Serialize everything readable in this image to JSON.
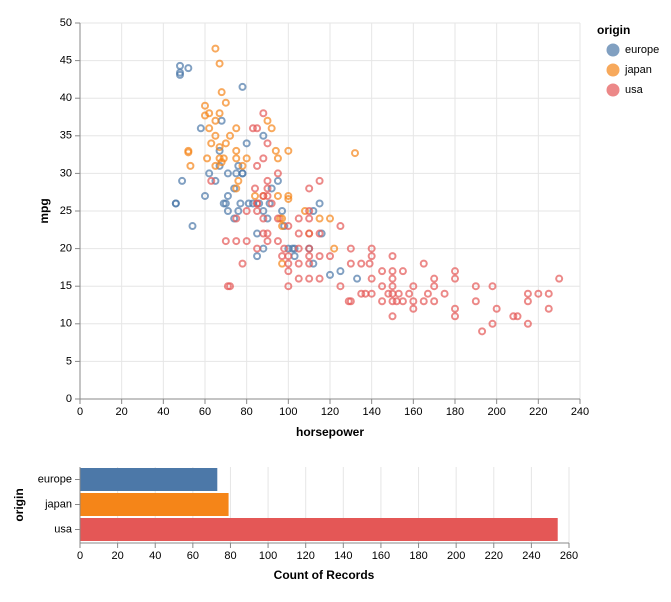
{
  "chart_data": [
    {
      "type": "scatter",
      "x_label": "horsepower",
      "y_label": "mpg",
      "legend_title": "origin",
      "xlim": [
        0,
        240
      ],
      "ylim": [
        0,
        50
      ],
      "xticks": [
        0,
        20,
        40,
        60,
        80,
        100,
        120,
        140,
        160,
        180,
        200,
        220,
        240
      ],
      "yticks": [
        0,
        5,
        10,
        15,
        20,
        25,
        30,
        35,
        40,
        45,
        50
      ],
      "grid": true,
      "series": [
        {
          "name": "europe",
          "color": "#4c78a8",
          "x": [
            46,
            46,
            48,
            48,
            52,
            48,
            49,
            54,
            58,
            60,
            62,
            67,
            67,
            69,
            70,
            71,
            71,
            74,
            75,
            76,
            76,
            77,
            78,
            78,
            80,
            81,
            83,
            85,
            86,
            88,
            90,
            91,
            92,
            95,
            97,
            98,
            100,
            102,
            103,
            110,
            112,
            115,
            116,
            120,
            125,
            133,
            103,
            85,
            112,
            71,
            88,
            74,
            88,
            65,
            68,
            78
          ],
          "values": [
            26,
            26,
            43.1,
            44.3,
            44,
            43.4,
            29,
            23,
            36,
            27,
            30,
            33,
            31,
            26,
            26,
            30,
            27,
            28,
            30,
            31,
            25,
            26,
            41.5,
            30,
            34,
            26,
            26,
            22,
            26,
            35,
            24,
            26,
            28,
            29,
            25,
            23,
            20,
            20,
            20,
            20,
            25,
            26,
            22,
            16.5,
            17,
            16,
            19,
            19,
            18,
            25,
            25,
            24,
            20,
            29,
            37,
            30
          ]
        },
        {
          "name": "japan",
          "color": "#f58518",
          "x": [
            52,
            52,
            53,
            60,
            61,
            62,
            65,
            67,
            65,
            68,
            67,
            65,
            67,
            68,
            69,
            70,
            72,
            75,
            75,
            75,
            76,
            78,
            80,
            84,
            88,
            90,
            92,
            94,
            95,
            95,
            96,
            97,
            97,
            100,
            100,
            108,
            110,
            115,
            120,
            122,
            132,
            60,
            62,
            63,
            67,
            70,
            65,
            75,
            97,
            100
          ],
          "values": [
            32.8,
            33,
            31,
            39,
            32,
            38,
            46.6,
            44.6,
            37,
            40.8,
            32,
            31,
            33.5,
            31.5,
            32,
            39.4,
            35,
            36,
            32,
            33,
            29,
            31,
            32,
            27,
            27,
            37,
            36,
            33,
            27,
            32,
            24,
            24,
            23,
            33,
            26.6,
            25,
            22,
            24,
            24,
            20,
            32.7,
            37.7,
            36,
            34,
            38,
            34,
            35,
            28,
            18,
            27
          ]
        },
        {
          "name": "usa",
          "color": "#e45756",
          "x": [
            63,
            71,
            72,
            75,
            78,
            80,
            85,
            85,
            88,
            88,
            90,
            90,
            90,
            95,
            97,
            100,
            100,
            100,
            105,
            105,
            105,
            110,
            110,
            110,
            110,
            115,
            115,
            120,
            125,
            129,
            130,
            130,
            135,
            137,
            139,
            140,
            140,
            140,
            145,
            145,
            148,
            150,
            150,
            150,
            150,
            150,
            150,
            152,
            153,
            155,
            158,
            160,
            165,
            165,
            167,
            170,
            170,
            175,
            180,
            180,
            180,
            190,
            190,
            193,
            198,
            198,
            200,
            208,
            210,
            215,
            215,
            215,
            220,
            225,
            225,
            230,
            88,
            85,
            90,
            95,
            84,
            85,
            110,
            105,
            95,
            100,
            110,
            115,
            140,
            145,
            150,
            155,
            160,
            170,
            180,
            160,
            85,
            90,
            88,
            83,
            70,
            85,
            92,
            80,
            90,
            98,
            105,
            115,
            110,
            135,
            125,
            88,
            100,
            110,
            75,
            130
          ],
          "values": [
            29,
            15,
            15,
            21,
            18,
            21,
            20,
            26,
            24,
            22,
            21,
            28,
            27,
            24,
            19,
            17,
            18,
            19,
            16,
            18,
            20,
            16,
            18,
            20,
            22,
            16,
            19,
            19,
            15,
            13,
            13,
            18,
            14,
            14,
            18,
            20,
            16,
            14,
            15,
            13,
            14,
            13,
            14,
            15,
            16,
            11,
            17,
            13,
            14,
            13,
            14,
            12,
            13,
            18,
            14,
            15,
            16,
            14,
            11,
            12,
            16,
            13,
            15,
            9,
            10,
            15,
            12,
            11,
            11,
            14,
            13,
            10,
            14,
            12,
            14,
            16,
            38,
            31,
            29,
            30,
            28,
            26,
            28,
            24,
            21,
            23,
            25,
            29,
            19,
            17,
            19,
            17,
            15,
            13,
            17,
            13,
            36,
            34,
            32,
            36,
            21,
            25,
            26,
            25,
            22,
            20,
            22,
            22,
            24,
            18,
            23,
            27,
            15,
            19,
            24,
            20
          ]
        }
      ]
    },
    {
      "type": "hbar",
      "x_label": "Count of Records",
      "y_label": "origin",
      "categories": [
        "europe",
        "japan",
        "usa"
      ],
      "values": [
        73,
        79,
        254
      ],
      "colors": [
        "#4c78a8",
        "#f58518",
        "#e45756"
      ],
      "xlim": [
        0,
        260
      ],
      "xticks": [
        0,
        20,
        40,
        60,
        80,
        100,
        120,
        140,
        160,
        180,
        200,
        220,
        240,
        260
      ],
      "grid": true
    }
  ]
}
